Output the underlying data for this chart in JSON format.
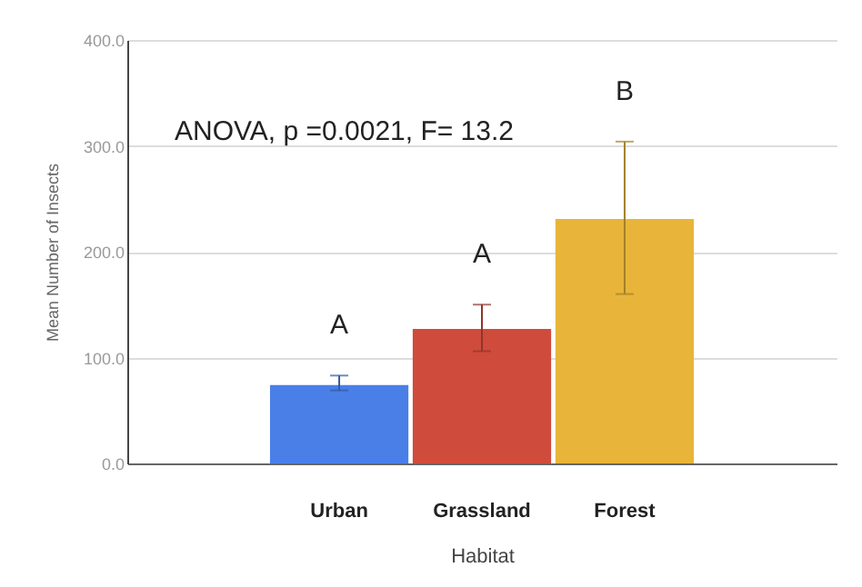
{
  "chart_data": {
    "type": "bar",
    "xlabel": "Habitat",
    "ylabel": "Mean Number of Insects",
    "categories": [
      "Urban",
      "Grassland",
      "Forest"
    ],
    "values": [
      74,
      127,
      231
    ],
    "colors": [
      "#4a7fe8",
      "#cf4b3c",
      "#e8b53a"
    ],
    "errors": [
      [
        69,
        83
      ],
      [
        106,
        150
      ],
      [
        160,
        304
      ]
    ],
    "ylim": [
      0,
      400
    ],
    "yticks": [
      {
        "value": 0,
        "label": "0.0"
      },
      {
        "value": 100,
        "label": "100.0"
      },
      {
        "value": 200,
        "label": "200.0"
      },
      {
        "value": 300,
        "label": "300.0"
      },
      {
        "value": 400,
        "label": "400.0"
      }
    ],
    "grid": "y",
    "annotations": [
      "ANOVA, p =0.0021, F= 13.2",
      "A",
      "A",
      "B"
    ]
  }
}
